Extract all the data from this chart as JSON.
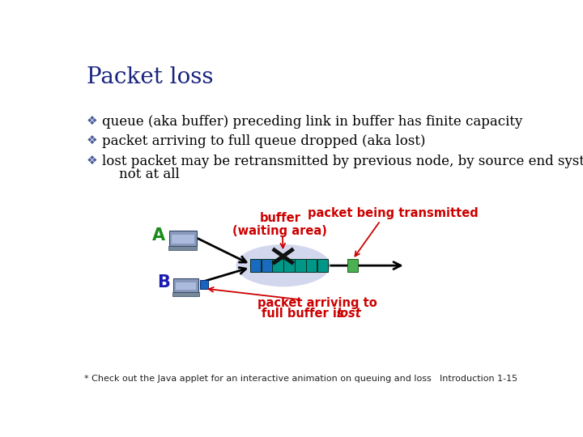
{
  "title": "Packet loss",
  "title_color": "#1a237e",
  "title_fontsize": 20,
  "bg_color": "#ffffff",
  "bullet_color": "#4a5a9a",
  "bullet_symbol": "❖",
  "bullets": [
    "queue (aka buffer) preceding link in buffer has finite capacity",
    "packet arriving to full queue dropped (aka lost)",
    "lost packet may be retransmitted by previous node, by source end system, or",
    "    not at all"
  ],
  "bullet_fontsize": 12,
  "label_buffer_line1": "buffer",
  "label_buffer_line2": "(waiting area)",
  "label_packet": "packet being transmitted",
  "label_arriving_line1": "packet arriving to",
  "label_arriving_line2": "full buffer is ",
  "label_arriving_italic": "lost",
  "label_A": "A",
  "label_B": "B",
  "label_footer": "* Check out the Java applet for an interactive animation on queuing and loss",
  "label_page": "Introduction 1-15",
  "red_color": "#cc0000",
  "green_label_color": "#1b8a1b",
  "blue_label_color": "#1a1ab0",
  "queue_teal": "#009688",
  "queue_blue": "#1a6bbf",
  "packet_green": "#4caf50",
  "blue_small_packet": "#1565c0",
  "ellipse_color": "#c5cae9",
  "router_line_color": "#111111"
}
